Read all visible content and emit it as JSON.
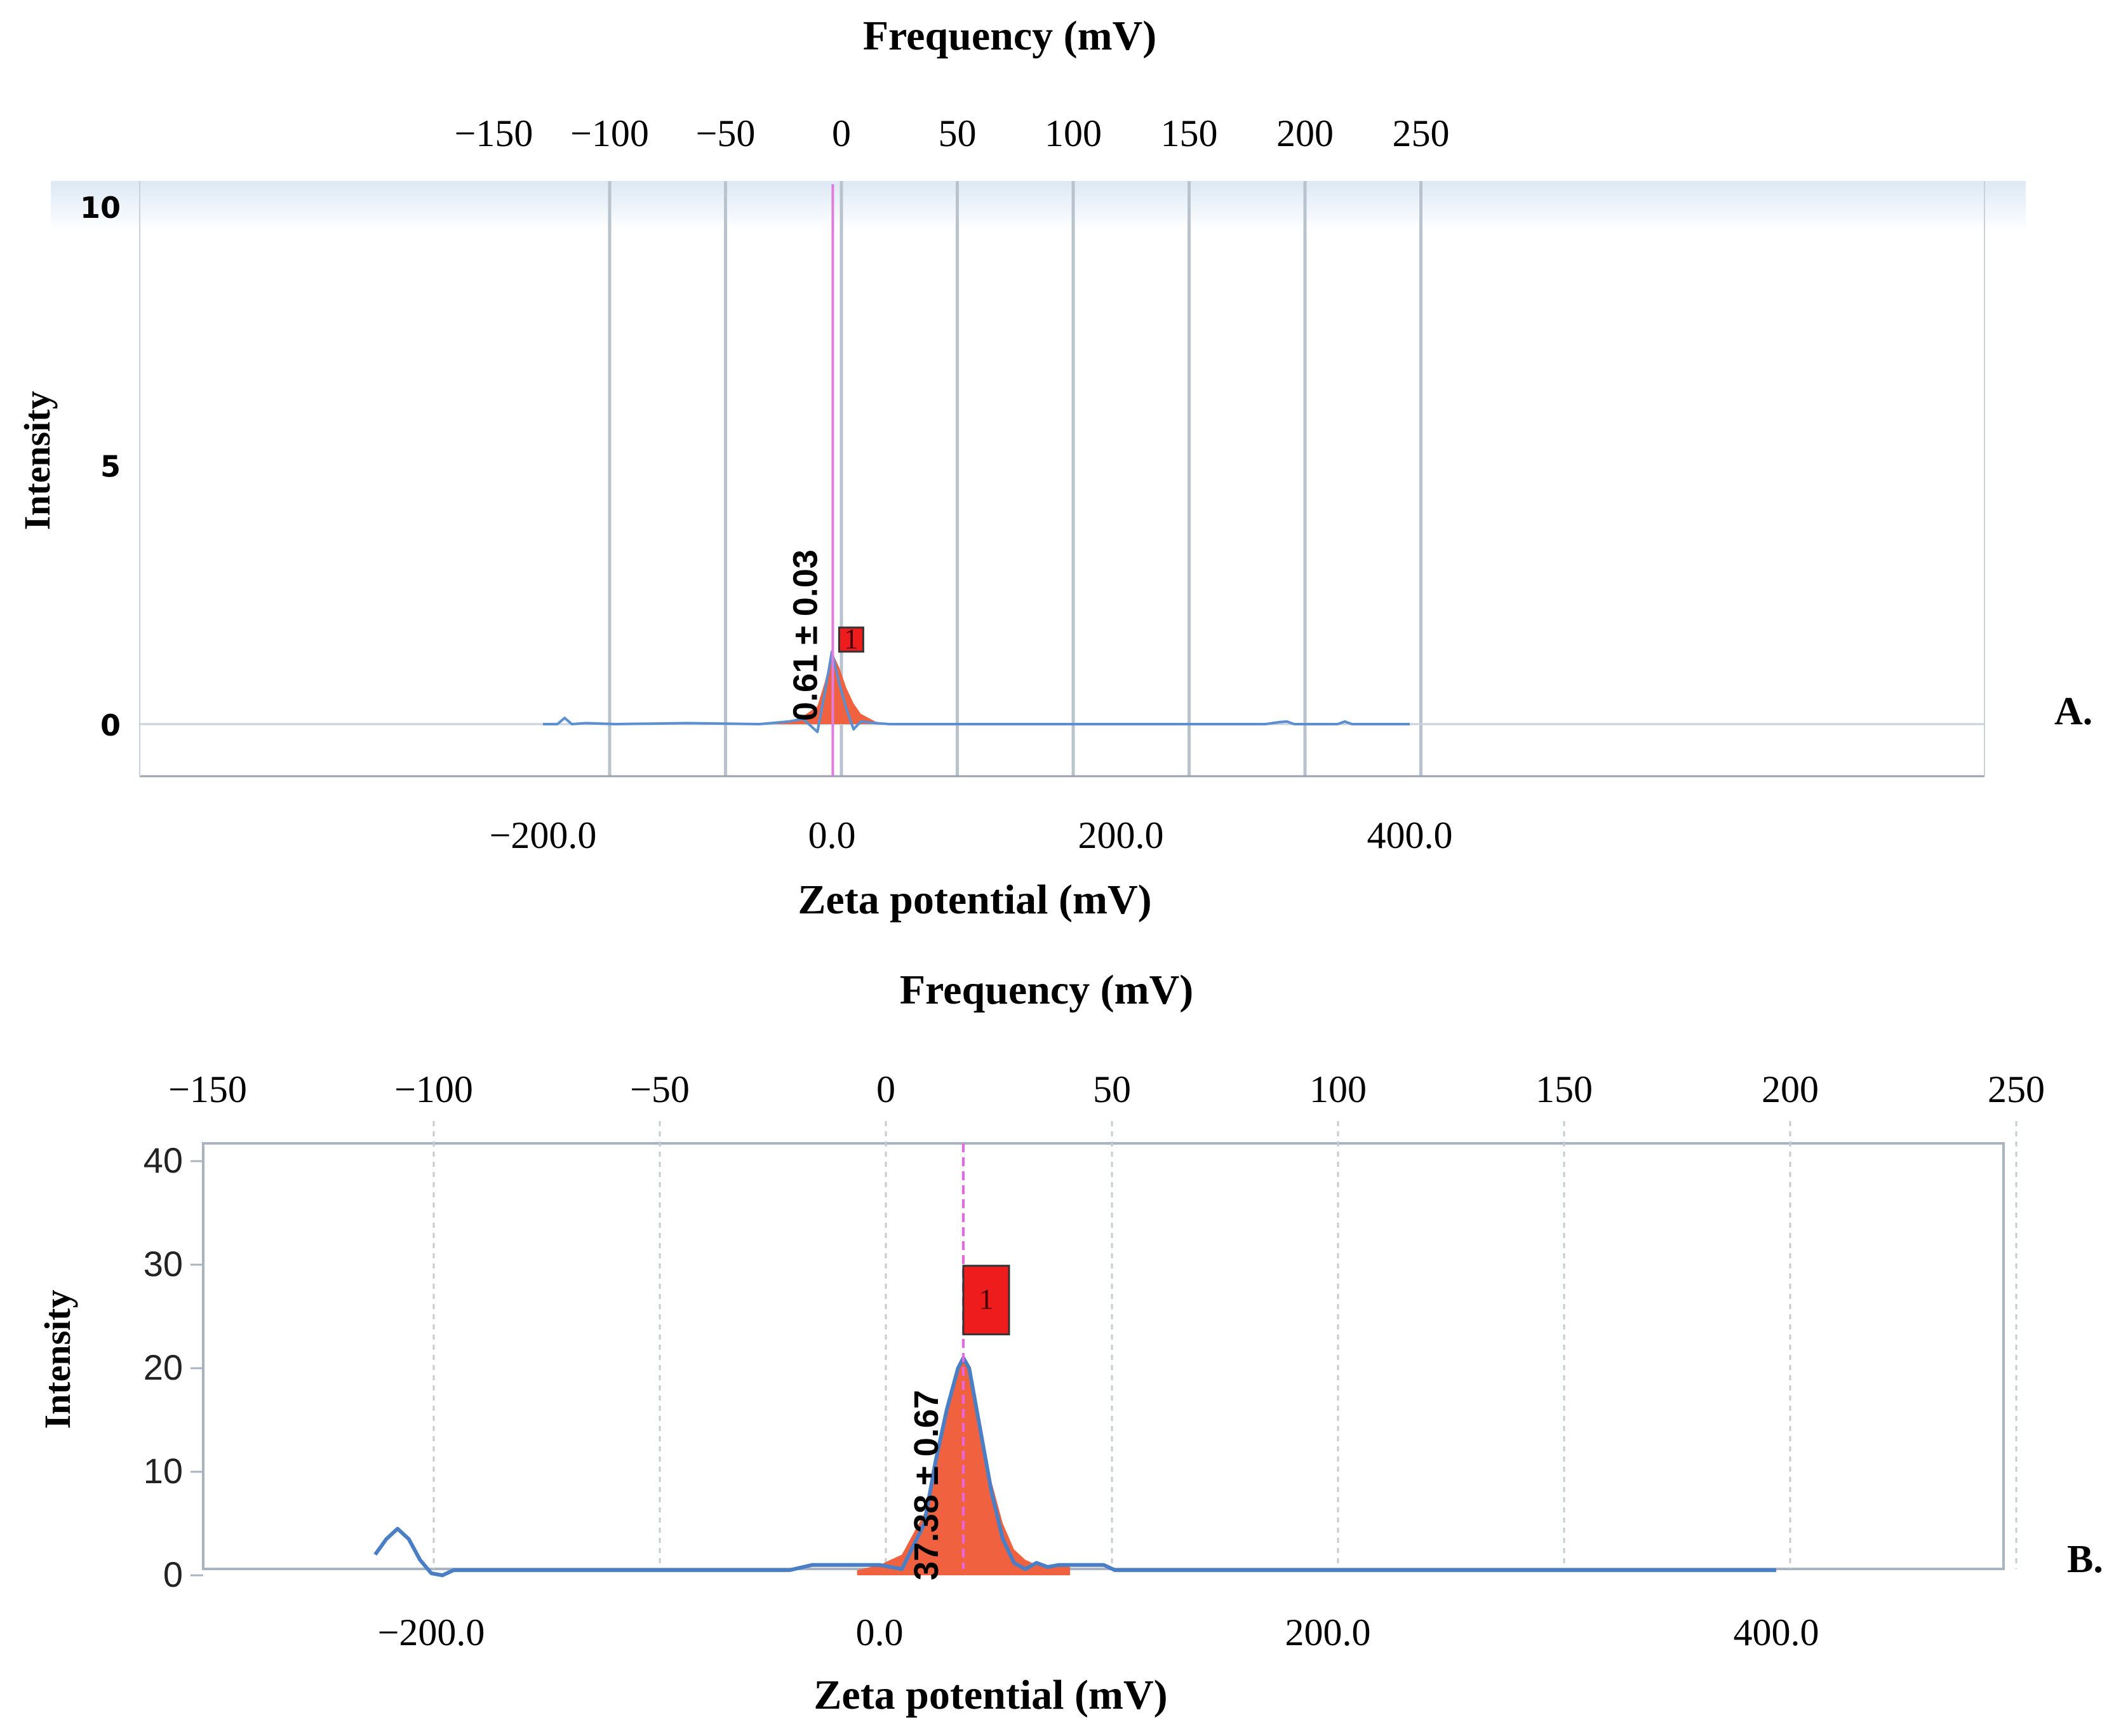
{
  "chart_data": [
    {
      "type": "area",
      "panel_label": "A.",
      "top_axis_title": "Frequency (mV)",
      "top_ticks": [
        "−150",
        "−100",
        "−50",
        "0",
        "50",
        "100",
        "150",
        "200",
        "250"
      ],
      "top_tick_values": [
        -150,
        -100,
        -50,
        0,
        50,
        100,
        150,
        200,
        250
      ],
      "xlabel": "Zeta potential (mV)",
      "x_ticks": [
        "−200.0",
        "0.0",
        "200.0",
        "400.0"
      ],
      "x_tick_values": [
        -200,
        0,
        200,
        400
      ],
      "ylabel": "Intensity",
      "y_ticks": [
        "0",
        "5",
        "10"
      ],
      "y_tick_values": [
        0,
        5,
        10
      ],
      "ylim": [
        -1,
        10
      ],
      "peak_value": 0.61,
      "peak_height": 1.4,
      "peak_label": "0.61 ± 0.03",
      "peak_marker": "1",
      "series": [
        {
          "name": "Intensity",
          "x": [
            -200,
            -190,
            -185,
            -180,
            -170,
            -150,
            -100,
            -50,
            -30,
            -20,
            -10,
            -5,
            0,
            5,
            10,
            15,
            20,
            30,
            40,
            60,
            100,
            200,
            300,
            310,
            315,
            320,
            330,
            350,
            355,
            360,
            370,
            400
          ],
          "y": [
            0,
            0,
            0.12,
            0,
            0.02,
            0,
            0.02,
            0,
            0.05,
            0.1,
            -0.15,
            0.6,
            1.4,
            0.8,
            0.3,
            -0.1,
            0.05,
            0.02,
            0,
            0,
            0,
            0,
            0,
            0.04,
            0.05,
            0,
            0,
            0,
            0.05,
            0,
            0,
            0
          ]
        }
      ],
      "peak_area": {
        "x": [
          -40,
          -30,
          -20,
          -10,
          -5,
          0,
          5,
          10,
          15,
          20,
          30,
          40
        ],
        "y": [
          0,
          0.05,
          0.15,
          0.35,
          0.8,
          1.4,
          1.1,
          0.7,
          0.4,
          0.2,
          0.05,
          0
        ]
      }
    },
    {
      "type": "area",
      "panel_label": "B.",
      "top_axis_title": "Frequency (mV)",
      "top_ticks": [
        "−150",
        "−100",
        "−50",
        "0",
        "50",
        "100",
        "150",
        "200",
        "250"
      ],
      "top_tick_values": [
        -150,
        -100,
        -50,
        0,
        50,
        100,
        150,
        200,
        250
      ],
      "xlabel": "Zeta potential (mV)",
      "x_ticks": [
        "−200.0",
        "0.0",
        "200.0",
        "400.0"
      ],
      "x_tick_values": [
        -200,
        0,
        200,
        400
      ],
      "ylabel": "Intensity",
      "y_ticks": [
        "0",
        "10",
        "20",
        "30",
        "40"
      ],
      "y_tick_values": [
        0,
        10,
        20,
        30,
        40
      ],
      "ylim": [
        0,
        40
      ],
      "peak_value": 37.38,
      "peak_height": 21,
      "peak_label": "37.38 ± 0.67",
      "peak_marker": "1",
      "series": [
        {
          "name": "Intensity",
          "x": [
            -225,
            -220,
            -215,
            -210,
            -205,
            -200,
            -195,
            -190,
            -100,
            -40,
            -30,
            0,
            10,
            20,
            25,
            30,
            35,
            37.4,
            40,
            45,
            50,
            55,
            60,
            65,
            70,
            75,
            80,
            90,
            100,
            105,
            110,
            400
          ],
          "y": [
            2,
            3.5,
            4.5,
            3.5,
            1.5,
            0.2,
            0,
            0.5,
            0.5,
            0.5,
            1,
            1,
            0.6,
            5,
            11,
            16,
            20,
            21,
            20,
            14,
            8,
            3.5,
            1.2,
            0.6,
            1.2,
            0.8,
            1,
            1,
            1,
            0.5,
            0.5,
            0.5
          ]
        }
      ],
      "peak_area": {
        "x": [
          -10,
          0,
          10,
          20,
          25,
          30,
          35,
          37.4,
          40,
          45,
          50,
          55,
          60,
          65,
          70,
          80,
          85
        ],
        "y": [
          0.5,
          1,
          2,
          6,
          11,
          16,
          20,
          21,
          20,
          15,
          9,
          5,
          2.5,
          1.5,
          1,
          1,
          0.8
        ]
      }
    }
  ]
}
